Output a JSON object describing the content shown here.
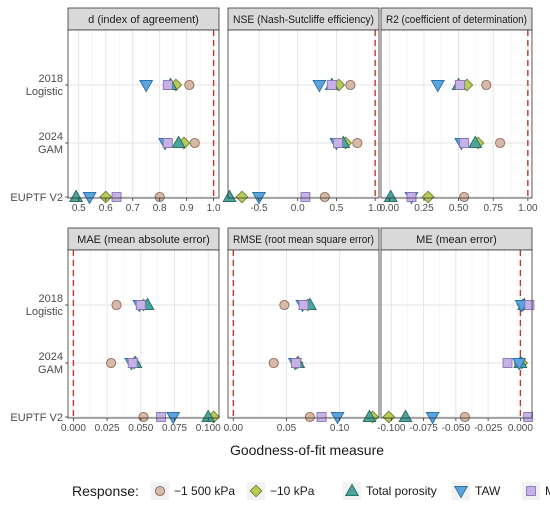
{
  "chart_data": {
    "type": "scatter",
    "x_axis_label": "Goodness-of-fit measure",
    "legend": {
      "title": "Response:",
      "entries": [
        {
          "name": "−1 500 kPa",
          "shape": "circle",
          "fill": "#d9b9a6",
          "stroke": "#8a6e5e"
        },
        {
          "name": "−10 kPa",
          "shape": "diamond",
          "fill": "#b8cc5a",
          "stroke": "#6f7d2a"
        },
        {
          "name": "Total porosity",
          "shape": "triangle-up",
          "fill": "#4aa59a",
          "stroke": "#2a6b63"
        },
        {
          "name": "TAW",
          "shape": "triangle-down",
          "fill": "#5aa4e0",
          "stroke": "#2d6ea3"
        },
        {
          "name": "MP",
          "shape": "square",
          "fill": "#c7b2e8",
          "stroke": "#8a74b3"
        }
      ]
    },
    "rows": [
      {
        "key": "logistic",
        "label_line1": "2018",
        "label_line2": "Logistic"
      },
      {
        "key": "gam",
        "label_line1": "2024",
        "label_line2": "GAM"
      },
      {
        "key": "euptf",
        "label_line1": "EUPTF V2",
        "label_line2": ""
      }
    ],
    "panels": [
      {
        "title": "d (index of agreement)",
        "xlim": [
          0.46,
          1.02
        ],
        "ref": 1.0,
        "ticks": [
          0.5,
          0.6,
          0.7,
          0.8,
          0.9,
          1.0
        ],
        "tick_labels": [
          "0.5",
          "0.6",
          "0.7",
          "0.8",
          "0.9",
          "1.0"
        ],
        "points": {
          "logistic": {
            "kpa1500": 0.91,
            "kpa10": 0.86,
            "porosity": 0.84,
            "taw": 0.75,
            "mp": 0.83
          },
          "gam": {
            "kpa1500": 0.93,
            "kpa10": 0.89,
            "porosity": 0.87,
            "taw": 0.82,
            "mp": 0.83
          },
          "euptf": {
            "kpa1500": 0.8,
            "kpa10": 0.6,
            "porosity": 0.49,
            "taw": 0.54,
            "mp": 0.64
          }
        }
      },
      {
        "title": "NSE (Nash-Sutcliffe efficiency)",
        "xlim": [
          -0.9,
          1.05
        ],
        "ref": 1.0,
        "ticks": [
          -0.5,
          0.0,
          0.5,
          1.0
        ],
        "tick_labels": [
          "-0.5",
          "0.0",
          "0.5",
          "1.0"
        ],
        "points": {
          "logistic": {
            "kpa1500": 0.68,
            "kpa10": 0.53,
            "porosity": 0.44,
            "taw": 0.28,
            "mp": 0.44
          },
          "gam": {
            "kpa1500": 0.77,
            "kpa10": 0.62,
            "porosity": 0.59,
            "taw": 0.5,
            "mp": 0.52
          },
          "euptf": {
            "kpa1500": 0.35,
            "kpa10": -0.72,
            "porosity": -0.88,
            "taw": -0.5,
            "mp": 0.1
          }
        }
      },
      {
        "title": "R2 (coefficient of determination)",
        "xlim": [
          -0.06,
          1.03
        ],
        "ref": 1.0,
        "ticks": [
          0.0,
          0.25,
          0.5,
          0.75,
          1.0
        ],
        "tick_labels": [
          "0.00",
          "0.25",
          "0.50",
          "0.75",
          "1.00"
        ],
        "points": {
          "logistic": {
            "kpa1500": 0.7,
            "kpa10": 0.56,
            "porosity": 0.5,
            "taw": 0.35,
            "mp": 0.51
          },
          "gam": {
            "kpa1500": 0.8,
            "kpa10": 0.64,
            "porosity": 0.62,
            "taw": 0.52,
            "mp": 0.54
          },
          "euptf": {
            "kpa1500": 0.54,
            "kpa10": 0.28,
            "porosity": 0.01,
            "taw": 0.16,
            "mp": 0.16
          }
        }
      },
      {
        "title": "MAE (mean absolute error)",
        "xlim": [
          -0.004,
          0.108
        ],
        "ref": 0.0,
        "ticks": [
          0.0,
          0.025,
          0.05,
          0.075,
          0.1
        ],
        "tick_labels": [
          "0.000",
          "0.025",
          "0.050",
          "0.075",
          "0.100"
        ],
        "points": {
          "logistic": {
            "kpa1500": 0.032,
            "kpa10": 0.052,
            "porosity": 0.055,
            "taw": 0.049,
            "mp": 0.05
          },
          "gam": {
            "kpa1500": 0.028,
            "kpa10": 0.045,
            "porosity": 0.046,
            "taw": 0.043,
            "mp": 0.044
          },
          "euptf": {
            "kpa1500": 0.052,
            "kpa10": 0.104,
            "porosity": 0.1,
            "taw": 0.074,
            "mp": 0.065
          }
        }
      },
      {
        "title": "RMSE (root mean square error)",
        "xlim": [
          -0.005,
          0.137
        ],
        "ref": 0.0,
        "ticks": [
          0.0,
          0.05,
          0.1
        ],
        "tick_labels": [
          "0.00",
          "0.05",
          "0.10"
        ],
        "points": {
          "logistic": {
            "kpa1500": 0.048,
            "kpa10": 0.07,
            "porosity": 0.072,
            "taw": 0.065,
            "mp": 0.066
          },
          "gam": {
            "kpa1500": 0.038,
            "kpa10": 0.06,
            "porosity": 0.061,
            "taw": 0.058,
            "mp": 0.059
          },
          "euptf": {
            "kpa1500": 0.072,
            "kpa10": 0.131,
            "porosity": 0.128,
            "taw": 0.098,
            "mp": 0.083
          }
        }
      },
      {
        "title": "ME (mean error)",
        "xlim": [
          -0.108,
          0.009
        ],
        "ref": 0.0,
        "ticks": [
          -0.1,
          -0.075,
          -0.05,
          -0.025,
          0.0
        ],
        "tick_labels": [
          "-0.100",
          "-0.075",
          "-0.050",
          "-0.025",
          "0.000"
        ],
        "points": {
          "logistic": {
            "kpa1500": 0.005,
            "kpa10": 0.002,
            "porosity": 0.003,
            "taw": 0.001,
            "mp": 0.007
          },
          "gam": {
            "kpa1500": -0.001,
            "kpa10": 0.001,
            "porosity": 0.0,
            "taw": -0.001,
            "mp": -0.01
          },
          "euptf": {
            "kpa1500": -0.043,
            "kpa10": -0.102,
            "porosity": -0.089,
            "taw": -0.068,
            "mp": 0.006
          }
        }
      }
    ]
  }
}
